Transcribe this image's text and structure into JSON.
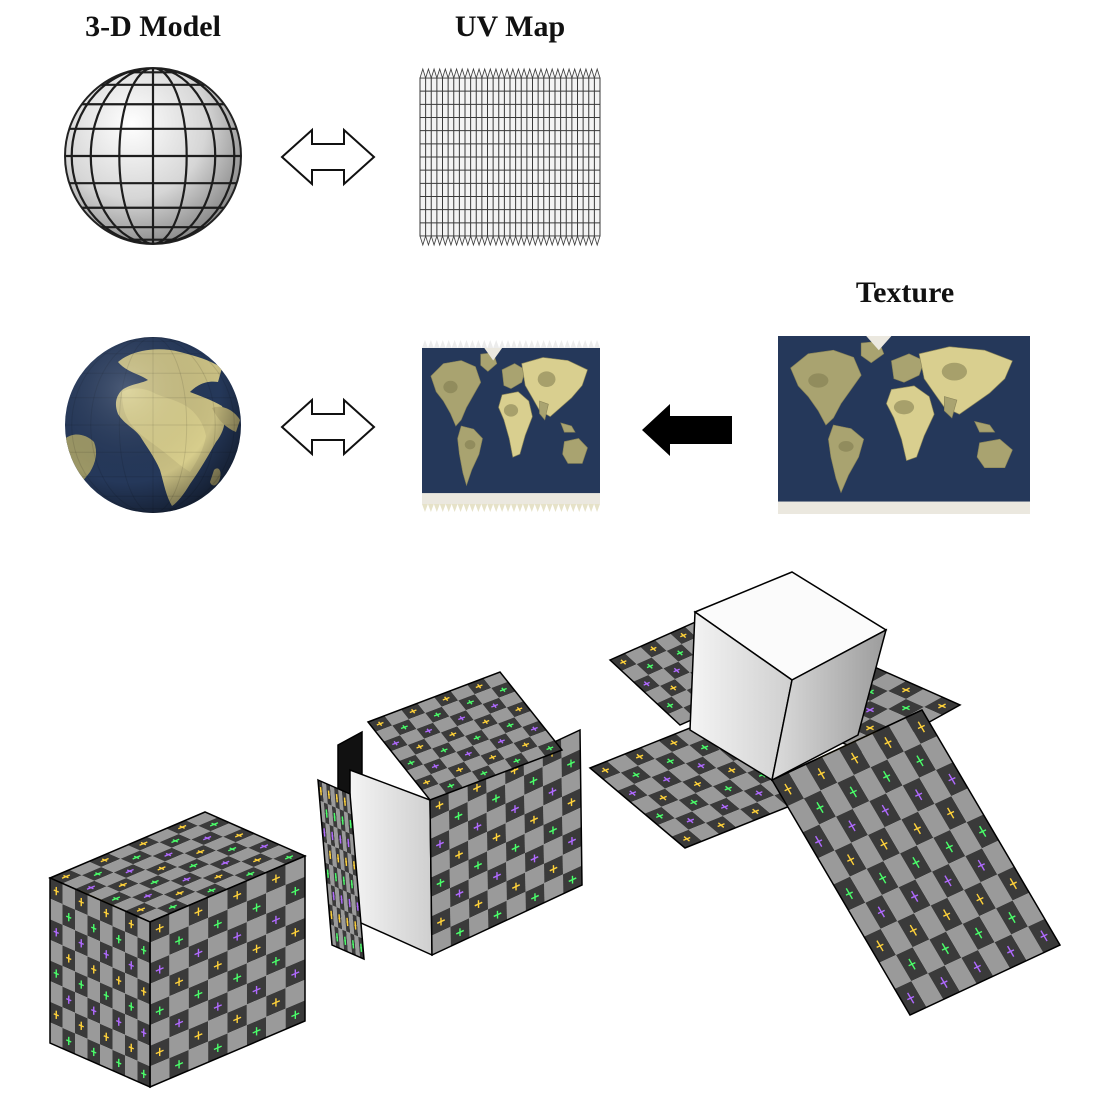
{
  "labels": {
    "model": "3-D Model",
    "uv_map": "UV Map",
    "texture": "Texture"
  },
  "colors": {
    "ocean": "#25385a",
    "land": "#a9a370",
    "land_light": "#d9cf8f",
    "ice": "#ebe8df",
    "grid_line": "#2a2a2a",
    "sphere_light": "#f4f4f4",
    "sphere_dark": "#9a9a9a",
    "checker_light": "#9a9a9a",
    "checker_dark": "#3a3a3a",
    "cross_colors": [
      "#ffd23a",
      "#ff4a4a",
      "#4aff6a",
      "#4ac8ff",
      "#b06aff",
      "#ff6ad2"
    ]
  },
  "icons": {
    "arrow_top": "double-arrow-icon",
    "arrow_mid": "double-arrow-icon",
    "arrow_right": "left-arrow-icon"
  }
}
